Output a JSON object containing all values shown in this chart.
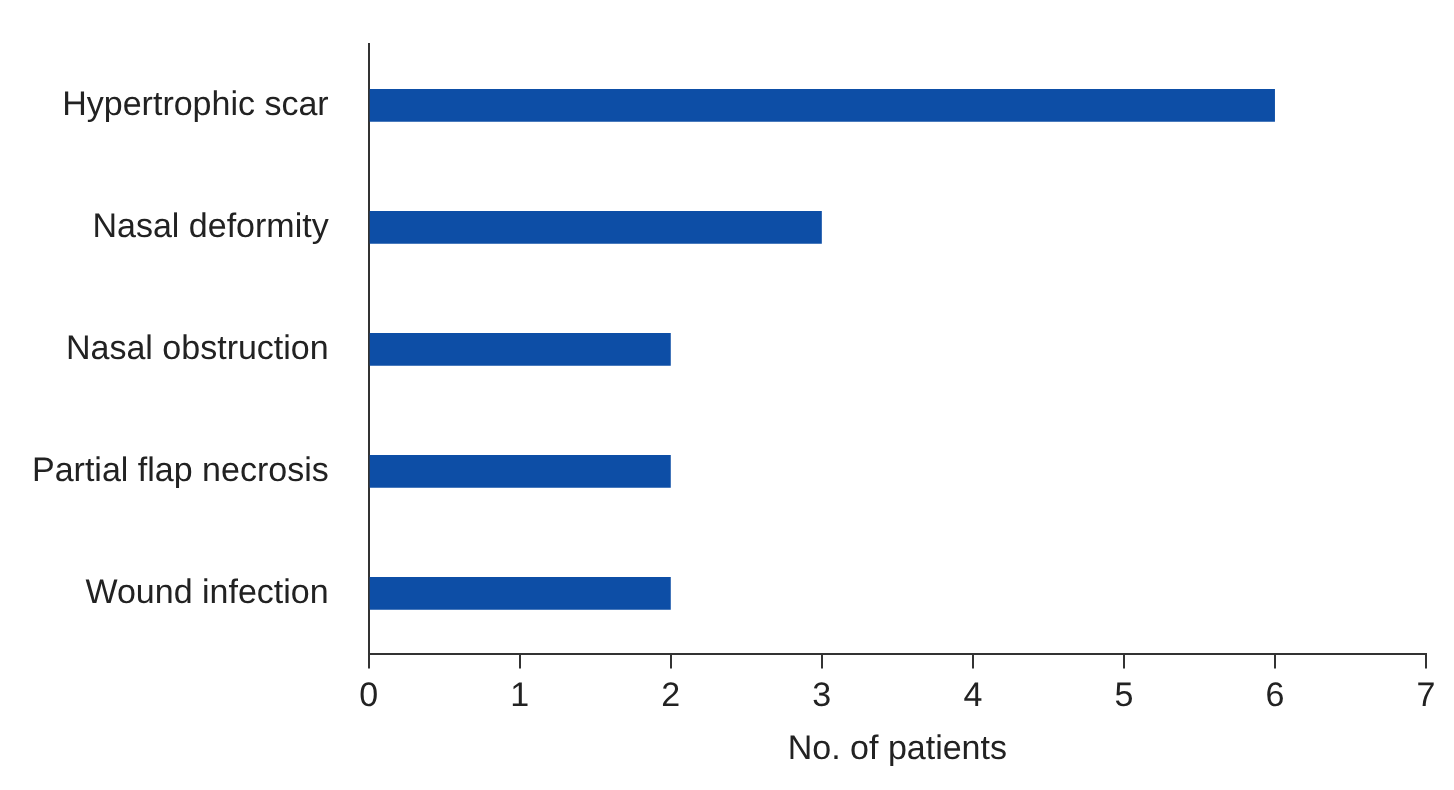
{
  "chart_data": {
    "type": "bar",
    "orientation": "horizontal",
    "xlabel": "No. of patients",
    "categories": [
      "Hypertrophic scar",
      "Nasal deformity",
      "Nasal obstruction",
      "Partial flap necrosis",
      "Wound infection"
    ],
    "values": [
      6,
      3,
      2,
      2,
      2
    ],
    "color": "#0d4ea6",
    "xlim": [
      0,
      7
    ],
    "xticks": [
      0,
      1,
      2,
      3,
      4,
      5,
      6,
      7
    ],
    "grid": false,
    "legend": false
  }
}
